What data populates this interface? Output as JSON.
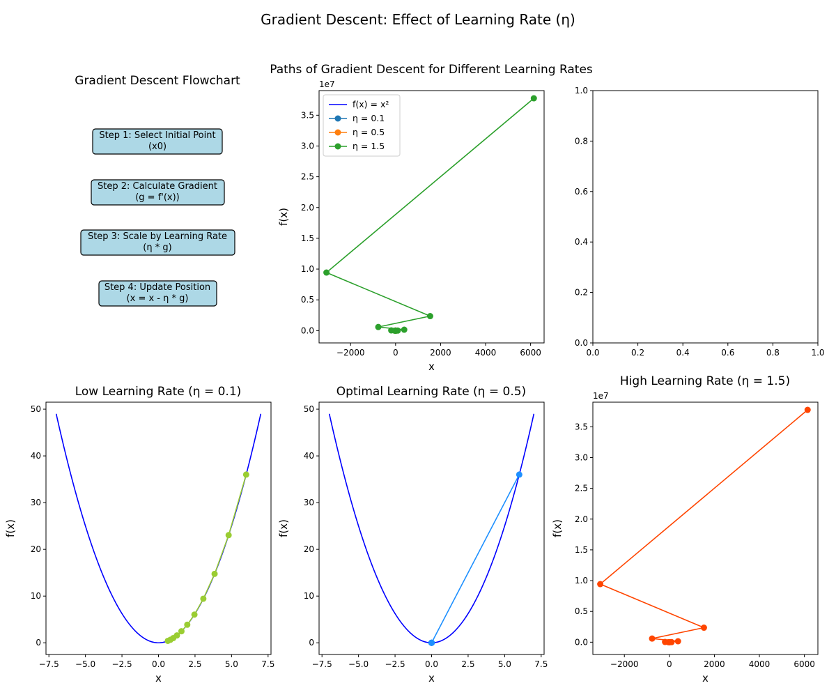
{
  "figure": {
    "suptitle": "Gradient Descent: Effect of Learning Rate (η)"
  },
  "flowchart": {
    "title": "Gradient Descent Flowchart",
    "box_color": "#add8e6",
    "steps": [
      {
        "line1": "Step 1: Select Initial Point",
        "line2": "(x0)"
      },
      {
        "line1": "Step 2: Calculate Gradient",
        "line2": "(g = f'(x))"
      },
      {
        "line1": "Step 3: Scale by Learning Rate",
        "line2": "(η * g)"
      },
      {
        "line1": "Step 4: Update Position",
        "line2": "(x = x - η * g)"
      }
    ]
  },
  "chart_data": [
    {
      "id": "paths",
      "type": "line",
      "title": "Paths of Gradient Descent for Different Learning Rates",
      "xlabel": "x",
      "ylabel": "f(x)",
      "xlim": [
        -3400,
        6600
      ],
      "ylim": [
        -2000000,
        39000000
      ],
      "x_ticks": [
        -2000,
        0,
        2000,
        4000,
        6000
      ],
      "x_tick_labels": [
        "−2000",
        "0",
        "2000",
        "4000",
        "6000"
      ],
      "y_ticks": [
        0,
        5000000,
        10000000,
        15000000,
        20000000,
        25000000,
        30000000,
        35000000
      ],
      "y_tick_labels": [
        "0.0",
        "0.5",
        "1.0",
        "1.5",
        "2.0",
        "2.5",
        "3.0",
        "3.5"
      ],
      "y_offset_label": "1e7",
      "legend": "top-left",
      "series": [
        {
          "name": "f(x) = x²",
          "color": "#0000ff",
          "markers": false,
          "curve": "x^2",
          "x_range": [
            -7,
            7
          ]
        },
        {
          "name": "η = 0.1",
          "color": "#1f77b4",
          "markers": true,
          "x": [
            6,
            4.8,
            3.84,
            3.07,
            2.46,
            1.97,
            1.57,
            1.26,
            1.01,
            0.81,
            0.64
          ],
          "y": [
            36,
            23.04,
            14.75,
            9.44,
            6.04,
            3.87,
            2.47,
            1.58,
            1.01,
            0.65,
            0.41
          ]
        },
        {
          "name": "η = 0.5",
          "color": "#ff7f0e",
          "markers": true,
          "x": [
            6,
            0,
            0,
            0,
            0,
            0,
            0,
            0,
            0,
            0,
            0
          ],
          "y": [
            36,
            0,
            0,
            0,
            0,
            0,
            0,
            0,
            0,
            0,
            0
          ]
        },
        {
          "name": "η = 1.5",
          "color": "#2ca02c",
          "markers": true,
          "x": [
            6,
            -12,
            24,
            -48,
            96,
            -192,
            384,
            -768,
            1536,
            -3072,
            6144
          ],
          "y": [
            36,
            144,
            576,
            2304,
            9216,
            36864,
            147456,
            589824,
            2359296,
            9437184,
            37748736
          ]
        }
      ]
    },
    {
      "id": "empty",
      "type": "line",
      "xlim": [
        0,
        1
      ],
      "ylim": [
        0,
        1
      ],
      "x_ticks": [
        0,
        0.2,
        0.4,
        0.6,
        0.8,
        1.0
      ],
      "x_tick_labels": [
        "0.0",
        "0.2",
        "0.4",
        "0.6",
        "0.8",
        "1.0"
      ],
      "y_ticks": [
        0,
        0.2,
        0.4,
        0.6,
        0.8,
        1.0
      ],
      "y_tick_labels": [
        "0.0",
        "0.2",
        "0.4",
        "0.6",
        "0.8",
        "1.0"
      ],
      "series": []
    },
    {
      "id": "low",
      "type": "line",
      "title": "Low Learning Rate (η = 0.1)",
      "xlabel": "x",
      "ylabel": "f(x)",
      "xlim": [
        -7.7,
        7.7
      ],
      "ylim": [
        -2.5,
        51.5
      ],
      "x_ticks": [
        -7.5,
        -5,
        -2.5,
        0,
        2.5,
        5,
        7.5
      ],
      "x_tick_labels": [
        "−7.5",
        "−5.0",
        "−2.5",
        "0.0",
        "2.5",
        "5.0",
        "7.5"
      ],
      "y_ticks": [
        0,
        10,
        20,
        30,
        40,
        50
      ],
      "y_tick_labels": [
        "0",
        "10",
        "20",
        "30",
        "40",
        "50"
      ],
      "series": [
        {
          "color": "#0000ff",
          "markers": false,
          "curve": "x^2",
          "x_range": [
            -7,
            7
          ]
        },
        {
          "color": "#9acd32",
          "markers": true,
          "x": [
            6,
            4.8,
            3.84,
            3.07,
            2.46,
            1.97,
            1.57,
            1.26,
            1.01,
            0.81,
            0.64
          ],
          "y": [
            36,
            23.04,
            14.75,
            9.44,
            6.04,
            3.87,
            2.47,
            1.58,
            1.01,
            0.65,
            0.41
          ]
        }
      ]
    },
    {
      "id": "optimal",
      "type": "line",
      "title": "Optimal Learning Rate (η = 0.5)",
      "xlabel": "x",
      "ylabel": "f(x)",
      "xlim": [
        -7.7,
        7.7
      ],
      "ylim": [
        -2.5,
        51.5
      ],
      "x_ticks": [
        -7.5,
        -5,
        -2.5,
        0,
        2.5,
        5,
        7.5
      ],
      "x_tick_labels": [
        "−7.5",
        "−5.0",
        "−2.5",
        "0.0",
        "2.5",
        "5.0",
        "7.5"
      ],
      "y_ticks": [
        0,
        10,
        20,
        30,
        40,
        50
      ],
      "y_tick_labels": [
        "0",
        "10",
        "20",
        "30",
        "40",
        "50"
      ],
      "series": [
        {
          "color": "#0000ff",
          "markers": false,
          "curve": "x^2",
          "x_range": [
            -7,
            7
          ]
        },
        {
          "color": "#1e90ff",
          "markers": true,
          "x": [
            6,
            0,
            0,
            0,
            0,
            0,
            0,
            0,
            0,
            0,
            0
          ],
          "y": [
            36,
            0,
            0,
            0,
            0,
            0,
            0,
            0,
            0,
            0,
            0
          ]
        }
      ]
    },
    {
      "id": "high",
      "type": "line",
      "title": "High Learning Rate (η = 1.5)",
      "xlabel": "x",
      "ylabel": "f(x)",
      "xlim": [
        -3400,
        6600
      ],
      "ylim": [
        -2000000,
        39000000
      ],
      "x_ticks": [
        -2000,
        0,
        2000,
        4000,
        6000
      ],
      "x_tick_labels": [
        "−2000",
        "0",
        "2000",
        "4000",
        "6000"
      ],
      "y_ticks": [
        0,
        5000000,
        10000000,
        15000000,
        20000000,
        25000000,
        30000000,
        35000000
      ],
      "y_tick_labels": [
        "0.0",
        "0.5",
        "1.0",
        "1.5",
        "2.0",
        "2.5",
        "3.0",
        "3.5"
      ],
      "y_offset_label": "1e7",
      "series": [
        {
          "color": "#0000ff",
          "markers": false,
          "curve": "x^2",
          "x_range": [
            -7,
            7
          ]
        },
        {
          "color": "#ff4500",
          "markers": true,
          "x": [
            6,
            -12,
            24,
            -48,
            96,
            -192,
            384,
            -768,
            1536,
            -3072,
            6144
          ],
          "y": [
            36,
            144,
            576,
            2304,
            9216,
            36864,
            147456,
            589824,
            2359296,
            9437184,
            37748736
          ]
        }
      ]
    }
  ]
}
